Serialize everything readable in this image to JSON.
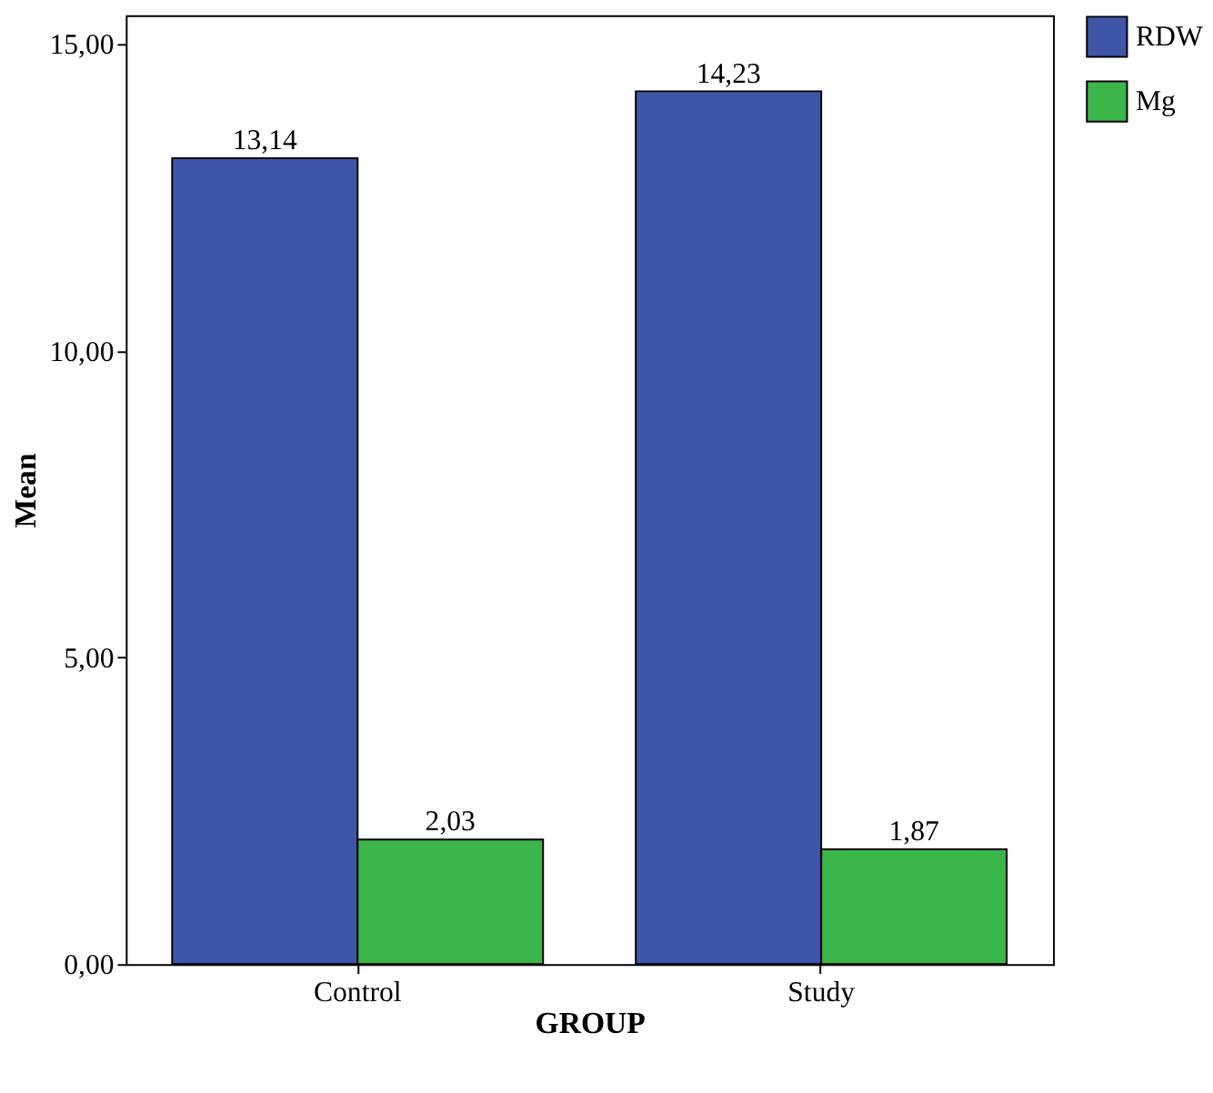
{
  "chart_data": {
    "type": "bar",
    "xlabel": "GROUP",
    "ylabel": "Mean",
    "categories": [
      "Control",
      "Study"
    ],
    "series": [
      {
        "name": "RDW",
        "color": "#3f56a8",
        "values": [
          13.14,
          14.23
        ],
        "value_labels": [
          "13,14",
          "14,23"
        ]
      },
      {
        "name": "Mg",
        "color": "#3cb54a",
        "values": [
          2.03,
          1.87
        ],
        "value_labels": [
          "2,03",
          "1,87"
        ]
      }
    ],
    "ylim": [
      0,
      15.47
    ],
    "yticks": [
      {
        "value": 0,
        "label": "0,00"
      },
      {
        "value": 5,
        "label": "5,00"
      },
      {
        "value": 10,
        "label": "10,00"
      },
      {
        "value": 15,
        "label": "15,00"
      }
    ],
    "grid": false,
    "legend": "top right"
  }
}
